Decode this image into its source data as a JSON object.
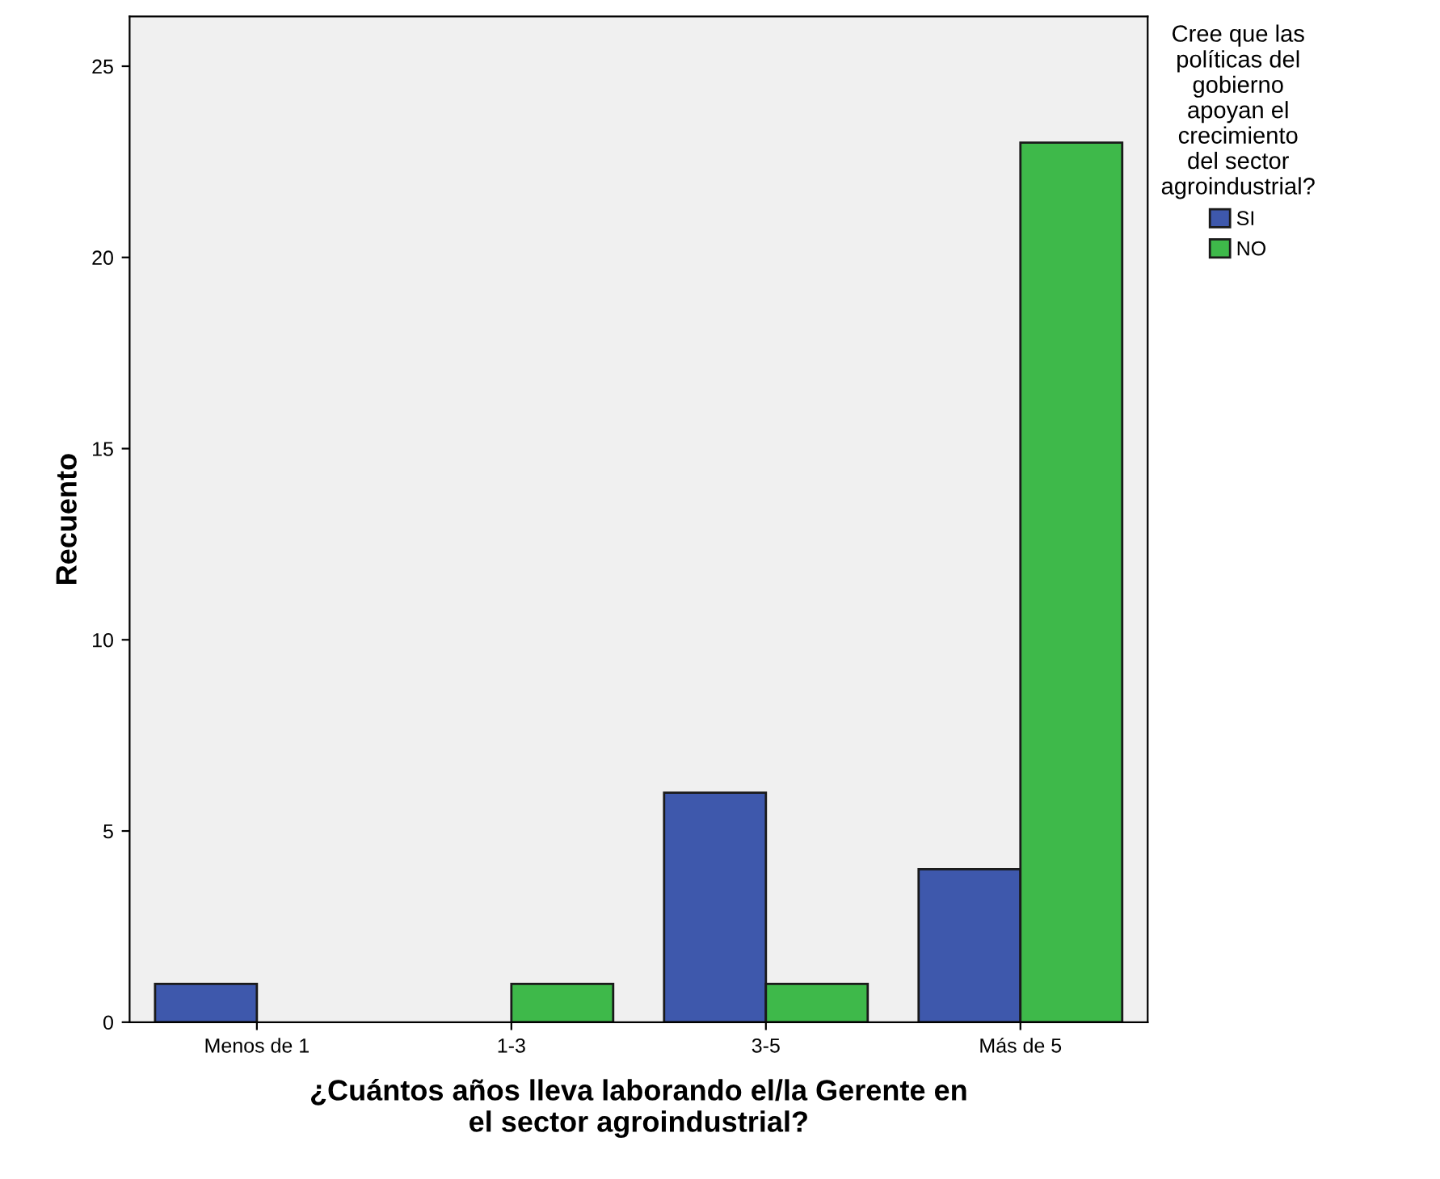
{
  "chart_data": {
    "type": "bar",
    "xlabel": "¿Cuántos años lleva laborando el/la Gerente en el sector agroindustrial?",
    "ylabel": "Recuento",
    "legend_title": "Cree que las políticas del gobierno apoyan el crecimiento del sector agroindustrial?",
    "categories": [
      "Menos de 1",
      "1-3",
      "3-5",
      "Más de 5"
    ],
    "series": [
      {
        "name": "SI",
        "color": "#3e58ac",
        "values": [
          1,
          null,
          6,
          4
        ]
      },
      {
        "name": "NO",
        "color": "#3eb94a",
        "values": [
          null,
          1,
          1,
          23
        ]
      }
    ],
    "ylim": [
      0,
      26.3
    ],
    "yticks": [
      0,
      5,
      10,
      15,
      20,
      25
    ],
    "grid": false,
    "legend": "top right"
  }
}
